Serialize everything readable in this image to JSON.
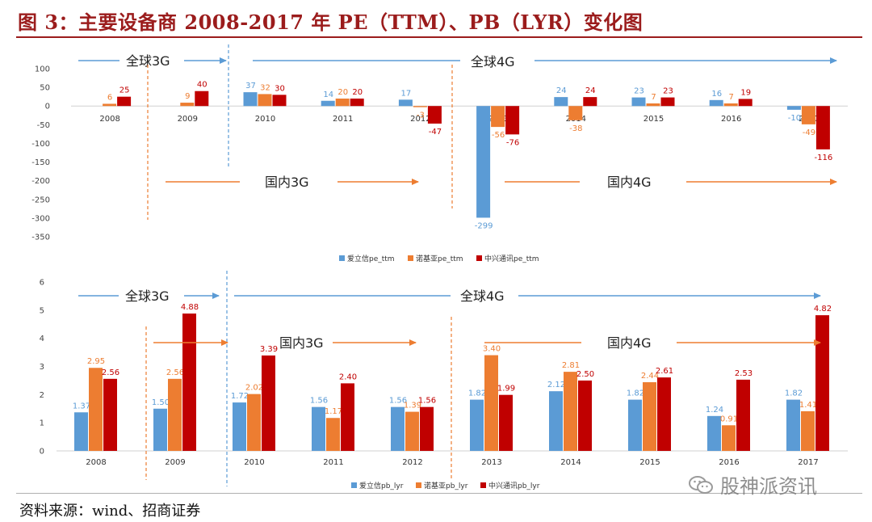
{
  "header": {
    "title": "图 3：主要设备商 2008-2017 年 PE（TTM）、PB（LYR）变化图"
  },
  "footer": {
    "source": "资料来源：wind、招商证券"
  },
  "watermark": {
    "text": "股神派资讯",
    "icon": "wechat-icon"
  },
  "colors": {
    "aixinxin": "#5b9bd5",
    "nokia": "#ed7d31",
    "zte": "#c00000",
    "title": "#9b1c1c",
    "arrow_blue": "#5b9bd5",
    "arrow_orange": "#ed7d31"
  },
  "chart_data": [
    {
      "type": "bar",
      "title": "",
      "categories": [
        "2008",
        "2009",
        "2010",
        "2011",
        "2012",
        "2013",
        "2014",
        "2015",
        "2016",
        "2017"
      ],
      "ylim": [
        -350,
        100
      ],
      "yticks": [
        100,
        50,
        0,
        -50,
        -100,
        -150,
        -200,
        -250,
        -300,
        -350
      ],
      "series": [
        {
          "name": "爱立信pe_ttm",
          "values": [
            null,
            null,
            37,
            14,
            17,
            -299,
            24,
            23,
            16,
            -10
          ],
          "labels": [
            "",
            "",
            "37",
            "14",
            "17",
            "-299",
            "24",
            "23",
            "16",
            "-10"
          ]
        },
        {
          "name": "诺基亚pe_ttm",
          "values": [
            6,
            9,
            32,
            20,
            -3,
            -56,
            -38,
            7,
            7,
            -49
          ],
          "labels": [
            "6",
            "9",
            "32",
            "20",
            "-3",
            "-56",
            "-38",
            "7",
            "7",
            "-49"
          ]
        },
        {
          "name": "中兴通讯pe_ttm",
          "values": [
            25,
            40,
            30,
            20,
            -47,
            -76,
            24,
            23,
            19,
            -116
          ],
          "labels": [
            "25",
            "40",
            "30",
            "20",
            "-47",
            "-76",
            "24",
            "23",
            "19",
            "-116"
          ]
        }
      ],
      "annotations": {
        "global3g": "全球3G",
        "global4g": "全球4G",
        "china3g": "国内3G",
        "china4g": "国内4G"
      }
    },
    {
      "type": "bar",
      "title": "",
      "categories": [
        "2008",
        "2009",
        "2010",
        "2011",
        "2012",
        "2013",
        "2014",
        "2015",
        "2016",
        "2017"
      ],
      "ylim": [
        0,
        6
      ],
      "yticks": [
        0,
        1,
        2,
        3,
        4,
        5,
        6
      ],
      "series": [
        {
          "name": "爱立信pb_lyr",
          "values": [
            1.37,
            1.5,
            1.72,
            1.56,
            1.56,
            1.82,
            2.12,
            1.82,
            1.24,
            1.82
          ],
          "labels": [
            "1.37",
            "1.50",
            "1.72",
            "1.56",
            "1.56",
            "1.82",
            "2.12",
            "1.82",
            "1.24",
            "1.82"
          ]
        },
        {
          "name": "诺基亚pb_lyr",
          "values": [
            2.95,
            2.56,
            2.02,
            1.17,
            1.39,
            3.4,
            2.81,
            2.44,
            0.91,
            1.41
          ],
          "labels": [
            "2.95",
            "2.56",
            "2.02",
            "1.17",
            "1.39",
            "3.40",
            "2.81",
            "2.44",
            "0.91",
            "1.41"
          ]
        },
        {
          "name": "中兴通讯pb_lyr",
          "values": [
            2.56,
            4.88,
            3.39,
            2.4,
            1.56,
            1.99,
            2.5,
            2.61,
            2.53,
            4.82
          ],
          "labels": [
            "2.56",
            "4.88",
            "3.39",
            "2.40",
            "1.56",
            "1.99",
            "2.50",
            "2.61",
            "2.53",
            "4.82"
          ]
        }
      ],
      "annotations": {
        "global3g": "全球3G",
        "global4g": "全球4G",
        "china3g": "国内3G",
        "china4g": "国内4G"
      }
    }
  ]
}
